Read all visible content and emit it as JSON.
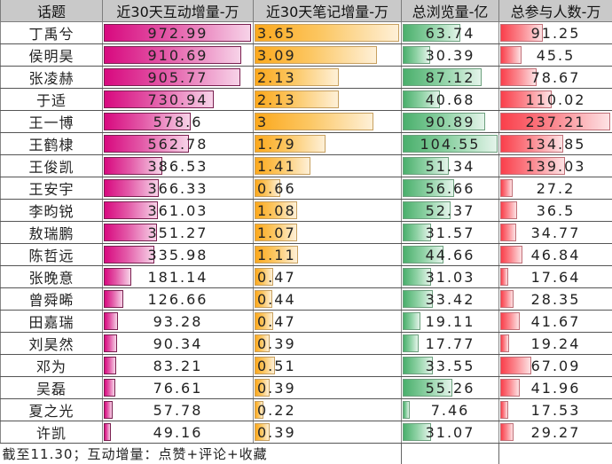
{
  "headers": [
    "话题",
    "近30天互动增量-万",
    "近30天笔记增量-万",
    "总浏览量-亿",
    "总参与人数-万"
  ],
  "footer_note": "截至11.30；互动增量：点赞+评论+收藏",
  "colors": {
    "interaction": "#d8097f",
    "notes": "#fba81c",
    "views": "#4aaf6c",
    "participants": "#fa3f4b"
  },
  "rows": [
    {
      "name": "丁禹兮",
      "interaction": "972.99",
      "notes": "3.65",
      "views": "63.74",
      "participants": "91.25"
    },
    {
      "name": "侯明昊",
      "interaction": "910.69",
      "notes": "3.09",
      "views": "30.39",
      "participants": "45.5"
    },
    {
      "name": "张凌赫",
      "interaction": "905.77",
      "notes": "2.13",
      "views": "87.12",
      "participants": "78.67"
    },
    {
      "name": "于适",
      "interaction": "730.94",
      "notes": "2.13",
      "views": "40.68",
      "participants": "110.02"
    },
    {
      "name": "王一博",
      "interaction": "578.6",
      "notes": "3",
      "views": "90.89",
      "participants": "237.21"
    },
    {
      "name": "王鹤棣",
      "interaction": "562.78",
      "notes": "1.79",
      "views": "104.55",
      "participants": "134.85"
    },
    {
      "name": "王俊凯",
      "interaction": "386.53",
      "notes": "1.41",
      "views": "51.34",
      "participants": "139.03"
    },
    {
      "name": "王安宇",
      "interaction": "366.33",
      "notes": "0.66",
      "views": "56.66",
      "participants": "27.2"
    },
    {
      "name": "李昀锐",
      "interaction": "361.03",
      "notes": "1.08",
      "views": "52.37",
      "participants": "36.5"
    },
    {
      "name": "敖瑞鹏",
      "interaction": "351.27",
      "notes": "1.07",
      "views": "31.57",
      "participants": "34.77"
    },
    {
      "name": "陈哲远",
      "interaction": "335.98",
      "notes": "1.11",
      "views": "44.66",
      "participants": "46.84"
    },
    {
      "name": "张晚意",
      "interaction": "181.14",
      "notes": "0.47",
      "views": "31.03",
      "participants": "17.64"
    },
    {
      "name": "曾舜晞",
      "interaction": "126.66",
      "notes": "0.44",
      "views": "33.42",
      "participants": "28.35"
    },
    {
      "name": "田嘉瑞",
      "interaction": "93.28",
      "notes": "0.47",
      "views": "19.11",
      "participants": "41.67"
    },
    {
      "name": "刘昊然",
      "interaction": "90.34",
      "notes": "0.39",
      "views": "17.77",
      "participants": "19.24"
    },
    {
      "name": "邓为",
      "interaction": "83.21",
      "notes": "0.51",
      "views": "33.55",
      "participants": "67.09"
    },
    {
      "name": "吴磊",
      "interaction": "76.61",
      "notes": "0.39",
      "views": "55.26",
      "participants": "41.96"
    },
    {
      "name": "夏之光",
      "interaction": "57.78",
      "notes": "0.22",
      "views": "7.46",
      "participants": "17.53"
    },
    {
      "name": "许凯",
      "interaction": "49.16",
      "notes": "0.39",
      "views": "31.07",
      "participants": "29.27"
    }
  ],
  "chart_data": {
    "type": "table",
    "title": "",
    "columns": [
      "话题",
      "近30天互动增量-万",
      "近30天笔记增量-万",
      "总浏览量-亿",
      "总参与人数-万"
    ],
    "categories": [
      "丁禹兮",
      "侯明昊",
      "张凌赫",
      "于适",
      "王一博",
      "王鹤棣",
      "王俊凯",
      "王安宇",
      "李昀锐",
      "敖瑞鹏",
      "陈哲远",
      "张晚意",
      "曾舜晞",
      "田嘉瑞",
      "刘昊然",
      "邓为",
      "吴磊",
      "夏之光",
      "许凯"
    ],
    "series": [
      {
        "name": "近30天互动增量-万",
        "values": [
          972.99,
          910.69,
          905.77,
          730.94,
          578.6,
          562.78,
          386.53,
          366.33,
          361.03,
          351.27,
          335.98,
          181.14,
          126.66,
          93.28,
          90.34,
          83.21,
          76.61,
          57.78,
          49.16
        ]
      },
      {
        "name": "近30天笔记增量-万",
        "values": [
          3.65,
          3.09,
          2.13,
          2.13,
          3,
          1.79,
          1.41,
          0.66,
          1.08,
          1.07,
          1.11,
          0.47,
          0.44,
          0.47,
          0.39,
          0.51,
          0.39,
          0.22,
          0.39
        ]
      },
      {
        "name": "总浏览量-亿",
        "values": [
          63.74,
          30.39,
          87.12,
          40.68,
          90.89,
          104.55,
          51.34,
          56.66,
          52.37,
          31.57,
          44.66,
          31.03,
          33.42,
          19.11,
          17.77,
          33.55,
          55.26,
          7.46,
          31.07
        ]
      },
      {
        "name": "总参与人数-万",
        "values": [
          91.25,
          45.5,
          78.67,
          110.02,
          237.21,
          134.85,
          139.03,
          27.2,
          36.5,
          34.77,
          46.84,
          17.64,
          28.35,
          41.67,
          19.24,
          67.09,
          41.96,
          17.53,
          29.27
        ]
      }
    ],
    "annotations": [
      "截至11.30；互动增量：点赞+评论+收藏"
    ],
    "note": "Each numeric cell rendered with an in-cell gradient data bar proportional to column max"
  }
}
